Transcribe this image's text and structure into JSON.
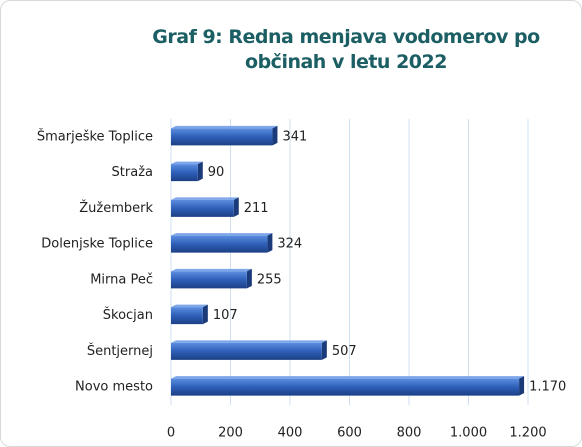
{
  "chart_data": {
    "type": "barh",
    "title": "Graf 9: Redna menjava vodomerov po občinah v letu 2022",
    "categories": [
      "Šmarješke Toplice",
      "Straža",
      "Žužemberk",
      "Dolenjske Toplice",
      "Mirna Peč",
      "Škocjan",
      "Šentjernej",
      "Novo mesto"
    ],
    "values": [
      341,
      90,
      211,
      324,
      255,
      107,
      507,
      1170
    ],
    "value_labels": [
      "341",
      "90",
      "211",
      "324",
      "255",
      "107",
      "507",
      "1.170"
    ],
    "color": "#2e5fb8",
    "xlim": [
      0,
      1200
    ],
    "xticks": [
      0,
      200,
      400,
      600,
      800,
      {
        "value": 1000,
        "label": "1.000"
      },
      {
        "value": 1200,
        "label": "1.200"
      }
    ],
    "grid": true
  }
}
